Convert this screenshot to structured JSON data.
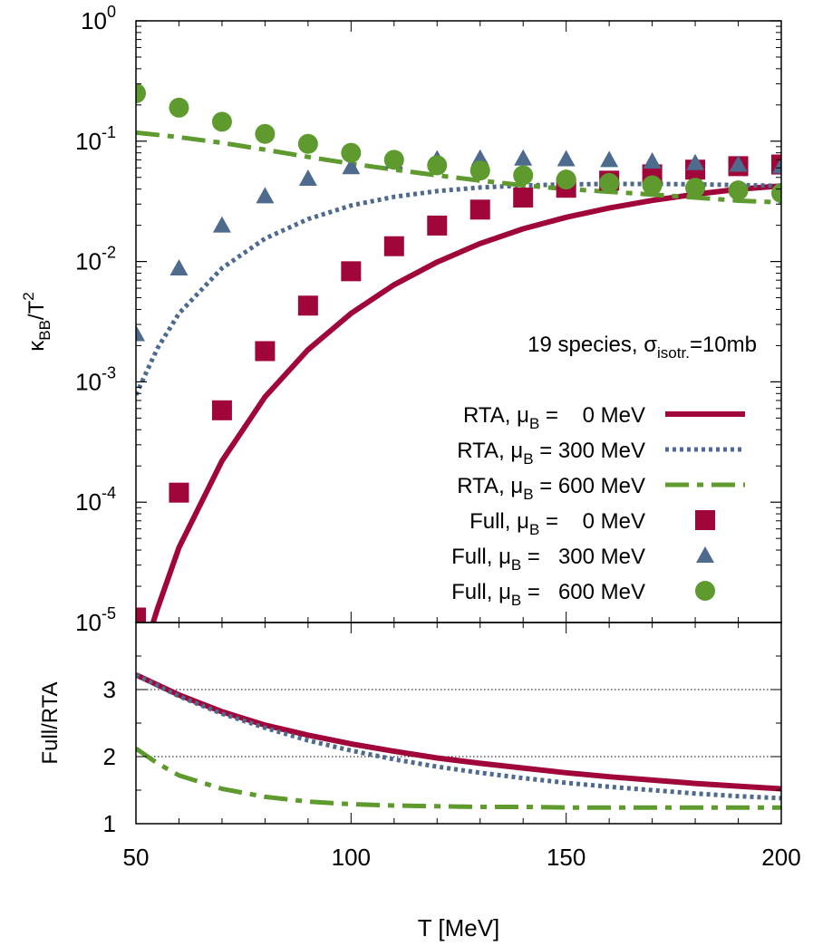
{
  "colors": {
    "rta_0": "#a0063a",
    "rta_300": "#4e6a8d",
    "rta_600": "#5e9a2e"
  },
  "chart_data": [
    {
      "type": "line",
      "panel": "top",
      "ylabel": {
        "base": "κ",
        "sub": "BB",
        "mid": "/T",
        "sup": "2"
      },
      "yscale": "log",
      "xlim": [
        50,
        200
      ],
      "ylim": [
        1e-05,
        1
      ],
      "y_ticks": [
        {
          "value": 1e-05,
          "base": "10",
          "exp": "-5"
        },
        {
          "value": 0.0001,
          "base": "10",
          "exp": "-4"
        },
        {
          "value": 0.001,
          "base": "10",
          "exp": "-3"
        },
        {
          "value": 0.01,
          "base": "10",
          "exp": "-2"
        },
        {
          "value": 0.1,
          "base": "10",
          "exp": "-1"
        },
        {
          "value": 1,
          "base": "10",
          "exp": "0"
        }
      ],
      "annotation": {
        "main": "19 species, σ",
        "sub": "isotr.",
        "tail": "=10mb"
      },
      "legend_position": "bottom-right",
      "series": [
        {
          "name": "RTA, μB =    0 MeV",
          "label_parts": [
            "RTA, μ",
            "B",
            " =    0 MeV"
          ],
          "style": "solid",
          "color": "#a0063a",
          "x": [
            50,
            55,
            60,
            70,
            80,
            90,
            100,
            110,
            120,
            130,
            140,
            150,
            160,
            170,
            180,
            190,
            200
          ],
          "y": [
            3.5e-06,
            1.3e-05,
            4.2e-05,
            0.00022,
            0.00075,
            0.00185,
            0.0037,
            0.0064,
            0.0099,
            0.0141,
            0.0187,
            0.0233,
            0.0278,
            0.0322,
            0.0362,
            0.0398,
            0.0425
          ]
        },
        {
          "name": "RTA, μB = 300 MeV",
          "label_parts": [
            "RTA, μ",
            "B",
            " = 300 MeV"
          ],
          "style": "dotted",
          "color": "#4e6a8d",
          "x": [
            50,
            55,
            60,
            70,
            80,
            90,
            100,
            110,
            120,
            130,
            140,
            150,
            160,
            170,
            180,
            190,
            200
          ],
          "y": [
            0.00078,
            0.0019,
            0.0037,
            0.0088,
            0.0155,
            0.0225,
            0.0292,
            0.0345,
            0.0385,
            0.0412,
            0.0428,
            0.0437,
            0.0441,
            0.0441,
            0.0438,
            0.0432,
            0.0425
          ]
        },
        {
          "name": "RTA, μB = 600 MeV",
          "label_parts": [
            "RTA, μ",
            "B",
            " = 600 MeV"
          ],
          "style": "dashdot",
          "color": "#5e9a2e",
          "x": [
            50,
            60,
            70,
            80,
            90,
            100,
            110,
            120,
            130,
            140,
            150,
            160,
            170,
            180,
            190,
            200
          ],
          "y": [
            0.118,
            0.108,
            0.097,
            0.085,
            0.074,
            0.065,
            0.058,
            0.052,
            0.047,
            0.043,
            0.04,
            0.038,
            0.036,
            0.034,
            0.032,
            0.031
          ]
        },
        {
          "name": "Full, μB =    0 MeV",
          "label_parts": [
            "Full, μ",
            "B",
            " =    0 MeV"
          ],
          "style": "square",
          "color": "#a0063a",
          "x": [
            50,
            60,
            70,
            80,
            90,
            100,
            110,
            120,
            130,
            140,
            150,
            160,
            170,
            180,
            190,
            200
          ],
          "y": [
            1.1e-05,
            0.00012,
            0.00058,
            0.0018,
            0.0043,
            0.0083,
            0.0134,
            0.0199,
            0.027,
            0.034,
            0.041,
            0.047,
            0.053,
            0.058,
            0.062,
            0.064
          ]
        },
        {
          "name": "Full, μB =   300 MeV",
          "label_parts": [
            "Full, μ",
            "B",
            " =   300 MeV"
          ],
          "style": "triangle",
          "color": "#4e6a8d",
          "x": [
            50,
            60,
            70,
            80,
            90,
            100,
            110,
            120,
            130,
            140,
            150,
            160,
            170,
            180,
            190,
            200
          ],
          "y": [
            0.0025,
            0.0088,
            0.02,
            0.035,
            0.049,
            0.061,
            0.068,
            0.071,
            0.072,
            0.072,
            0.071,
            0.07,
            0.068,
            0.066,
            0.064,
            0.062
          ]
        },
        {
          "name": "Full, μB =   600 MeV",
          "label_parts": [
            "Full, μ",
            "B",
            " =   600 MeV"
          ],
          "style": "circle",
          "color": "#5e9a2e",
          "x": [
            50,
            60,
            70,
            80,
            90,
            100,
            110,
            120,
            130,
            140,
            150,
            160,
            170,
            180,
            190,
            200
          ],
          "y": [
            0.25,
            0.19,
            0.145,
            0.115,
            0.095,
            0.08,
            0.07,
            0.063,
            0.057,
            0.052,
            0.048,
            0.045,
            0.043,
            0.041,
            0.039,
            0.037
          ]
        }
      ]
    },
    {
      "type": "line",
      "panel": "bottom",
      "xlabel": "T [MeV]",
      "ylabel": "Full/RTA",
      "xlim": [
        50,
        200
      ],
      "ylim": [
        1,
        4
      ],
      "x_ticks": [
        50,
        100,
        150,
        200
      ],
      "y_ticks": [
        1,
        2,
        3
      ],
      "reference_lines": [
        2,
        3
      ],
      "series": [
        {
          "name": "μB = 0 MeV",
          "style": "solid",
          "color": "#a0063a",
          "x": [
            50,
            60,
            70,
            80,
            90,
            100,
            110,
            120,
            130,
            140,
            150,
            160,
            170,
            180,
            190,
            200
          ],
          "y": [
            3.22,
            2.92,
            2.67,
            2.47,
            2.32,
            2.19,
            2.08,
            1.98,
            1.9,
            1.83,
            1.76,
            1.7,
            1.65,
            1.6,
            1.56,
            1.52
          ]
        },
        {
          "name": "μB = 300 MeV",
          "style": "dotted",
          "color": "#4e6a8d",
          "x": [
            50,
            60,
            70,
            80,
            90,
            100,
            110,
            120,
            130,
            140,
            150,
            160,
            170,
            180,
            190,
            200
          ],
          "y": [
            3.22,
            2.9,
            2.64,
            2.43,
            2.24,
            2.09,
            1.96,
            1.85,
            1.76,
            1.68,
            1.61,
            1.55,
            1.5,
            1.45,
            1.41,
            1.38
          ]
        },
        {
          "name": "μB = 600 MeV",
          "style": "dashdot",
          "color": "#5e9a2e",
          "x": [
            50,
            55,
            60,
            70,
            80,
            90,
            100,
            110,
            120,
            130,
            140,
            150,
            160,
            170,
            180,
            190,
            200
          ],
          "y": [
            2.12,
            1.9,
            1.72,
            1.52,
            1.4,
            1.33,
            1.29,
            1.27,
            1.26,
            1.25,
            1.25,
            1.24,
            1.24,
            1.24,
            1.24,
            1.24,
            1.24
          ]
        }
      ]
    }
  ]
}
